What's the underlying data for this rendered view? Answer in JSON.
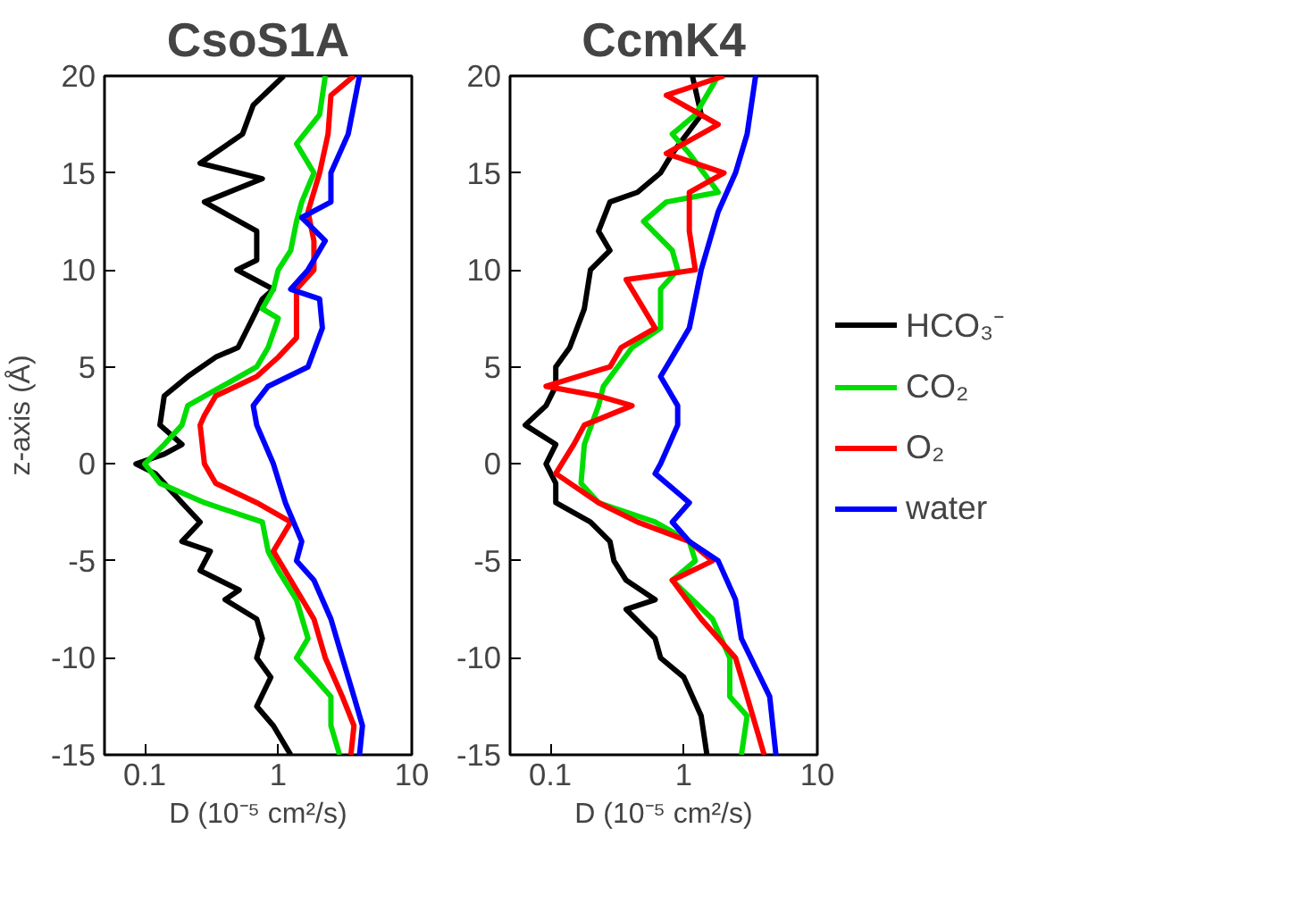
{
  "chart_data": [
    {
      "type": "line",
      "title": "CsoS1A",
      "xlabel": "D (10⁻⁵ cm²/s)",
      "ylabel": "z-axis (Å)",
      "log": "x",
      "xlim": [
        0.05,
        10
      ],
      "xticks": [
        0.1,
        1,
        10
      ],
      "ylim": [
        -15,
        20
      ],
      "yticks": [
        -15,
        -10,
        -5,
        0,
        5,
        10,
        15,
        20
      ],
      "grid": false,
      "series": [
        {
          "color": "#000000",
          "x": [
            1.1,
            0.65,
            0.54,
            0.26,
            0.76,
            0.28,
            0.69,
            0.69,
            0.49,
            0.92,
            0.76,
            0.5,
            0.34,
            0.21,
            0.14,
            0.13,
            0.19,
            0.14,
            0.086,
            0.12,
            0.19,
            0.26,
            0.19,
            0.31,
            0.26,
            0.51,
            0.4,
            0.69,
            0.76,
            0.69,
            0.88,
            0.69,
            0.92,
            1.24
          ],
          "values": [
            20,
            18.5,
            17,
            15.5,
            14.7,
            13.5,
            12,
            10.5,
            10,
            9,
            8.5,
            6,
            5.5,
            4.5,
            3.5,
            2,
            1,
            0.5,
            0,
            -0.5,
            -2,
            -3,
            -4,
            -4.5,
            -5.5,
            -6.5,
            -7,
            -8,
            -9,
            -10,
            -11,
            -12.5,
            -13.5,
            -15
          ]
        },
        {
          "color": "#00dd00",
          "x": [
            2.25,
            2.04,
            1.37,
            1.85,
            1.5,
            1.37,
            1.24,
            1.0,
            0.92,
            0.76,
            1.0,
            0.84,
            0.69,
            0.38,
            0.21,
            0.19,
            0.14,
            0.1,
            0.13,
            0.28,
            0.76,
            0.84,
            1.0,
            1.37,
            1.67,
            1.37,
            1.85,
            2.48,
            2.48,
            2.88
          ],
          "values": [
            20,
            18,
            16.5,
            15,
            13.5,
            12.5,
            11,
            10,
            9,
            8,
            7.5,
            6,
            5,
            4,
            3,
            2,
            1,
            0,
            -1,
            -2,
            -3,
            -4.5,
            -5.5,
            -7,
            -9,
            -10,
            -11,
            -12,
            -13.5,
            -15
          ]
        },
        {
          "color": "#ff0000",
          "x": [
            3.69,
            2.48,
            2.36,
            2.04,
            1.67,
            1.85,
            1.85,
            1.37,
            1.37,
            1.37,
            1.0,
            0.69,
            0.34,
            0.28,
            0.26,
            0.28,
            0.34,
            0.69,
            1.24,
            0.92,
            1.24,
            1.85,
            2.25,
            3.02,
            3.69,
            3.5
          ],
          "values": [
            20,
            19,
            17,
            15,
            13,
            11.5,
            10,
            9,
            8,
            6.5,
            5.5,
            4.5,
            3.5,
            2.5,
            2,
            0,
            -1,
            -2,
            -3,
            -4.5,
            -6,
            -8,
            -10,
            -12,
            -13.5,
            -15
          ]
        },
        {
          "color": "#0000ff",
          "x": [
            4.06,
            3.34,
            2.48,
            2.48,
            1.5,
            2.25,
            1.67,
            1.24,
            2.04,
            2.14,
            1.67,
            0.84,
            0.65,
            0.69,
            0.92,
            1.13,
            1.5,
            1.37,
            1.85,
            2.48,
            3.02,
            3.69,
            4.27,
            4.06
          ],
          "values": [
            20,
            17,
            15,
            13.5,
            12.7,
            11.5,
            10,
            9,
            8.5,
            7,
            5,
            4,
            3,
            2,
            0,
            -2,
            -4,
            -5,
            -6,
            -8,
            -10,
            -12,
            -13.5,
            -15
          ]
        }
      ]
    },
    {
      "type": "line",
      "title": "CcmK4",
      "xlabel": "D (10⁻⁵ cm²/s)",
      "log": "x",
      "xlim": [
        0.05,
        10
      ],
      "xticks": [
        0.1,
        1,
        10
      ],
      "ylim": [
        -15,
        20
      ],
      "yticks": [
        -15,
        -10,
        -5,
        0,
        5,
        10,
        15,
        20
      ],
      "grid": false,
      "legend": "right",
      "series": [
        {
          "name": "HCO₃⁻",
          "color": "#000000",
          "x": [
            1.16,
            1.35,
            0.82,
            0.67,
            0.45,
            0.28,
            0.23,
            0.28,
            0.2,
            0.18,
            0.14,
            0.11,
            0.11,
            0.093,
            0.065,
            0.11,
            0.093,
            0.11,
            0.11,
            0.2,
            0.28,
            0.3,
            0.37,
            0.61,
            0.37,
            0.61,
            0.67,
            1.0,
            1.35,
            1.49
          ],
          "values": [
            20,
            18,
            16,
            15,
            14,
            13.5,
            12,
            11,
            10,
            8,
            6,
            5,
            4,
            3,
            2,
            1,
            0,
            -1,
            -2,
            -3,
            -4,
            -5,
            -6,
            -7,
            -7.5,
            -9,
            -10,
            -11,
            -13,
            -15
          ]
        },
        {
          "name": "CO₂",
          "color": "#00dd00",
          "x": [
            1.81,
            1.22,
            0.82,
            1.1,
            1.81,
            0.74,
            0.5,
            0.82,
            0.9,
            0.67,
            0.67,
            0.41,
            0.25,
            0.23,
            0.18,
            0.17,
            0.23,
            0.61,
            1.1,
            1.22,
            0.82,
            1.64,
            2.21,
            2.21,
            2.98,
            2.7
          ],
          "values": [
            20,
            18,
            17,
            16,
            14,
            13.5,
            12.5,
            11,
            10,
            9,
            7,
            6,
            4,
            3,
            1,
            -1,
            -2,
            -3,
            -4,
            -5,
            -6,
            -8,
            -10,
            -12,
            -13,
            -15
          ]
        },
        {
          "name": "O₂",
          "color": "#ff0000",
          "x": [
            2.0,
            0.74,
            1.81,
            0.74,
            2.0,
            1.1,
            1.1,
            1.22,
            0.37,
            0.5,
            0.61,
            0.34,
            0.28,
            0.093,
            0.23,
            0.41,
            0.18,
            0.15,
            0.11,
            0.23,
            0.45,
            1.1,
            1.64,
            0.82,
            1.35,
            2.44,
            2.98,
            4.0
          ],
          "values": [
            20,
            19,
            17.5,
            16,
            15,
            14,
            12,
            10,
            9.5,
            8,
            7,
            6,
            5,
            4,
            3.5,
            3,
            2,
            1,
            -0.5,
            -2,
            -3,
            -4,
            -5,
            -6,
            -8,
            -10,
            -12,
            -15
          ]
        },
        {
          "name": "water",
          "color": "#0000ff",
          "x": [
            3.45,
            2.98,
            2.44,
            1.81,
            1.35,
            1.1,
            0.74,
            0.67,
            0.9,
            0.9,
            0.67,
            0.61,
            1.1,
            0.82,
            1.1,
            1.81,
            2.44,
            2.7,
            4.4,
            4.9
          ],
          "values": [
            20,
            17,
            15,
            13,
            10,
            7,
            5,
            4.5,
            3,
            2,
            0,
            -0.5,
            -2,
            -3,
            -4,
            -5,
            -7,
            -9,
            -12,
            -15
          ]
        }
      ]
    }
  ]
}
